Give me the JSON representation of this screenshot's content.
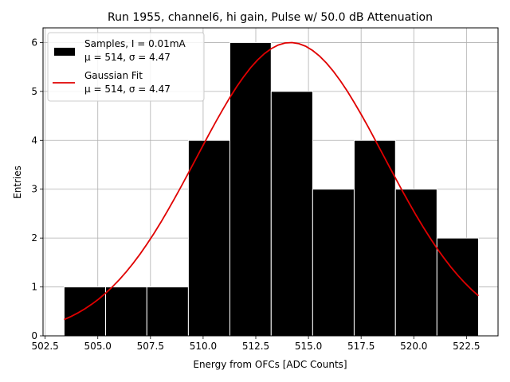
{
  "chart_data": {
    "type": "bar",
    "title": "Run 1955, channel6, hi gain, Pulse w/ 50.0 dB Attenuation",
    "xlabel": "Energy from OFCs [ADC Counts]",
    "ylabel": "Entries",
    "xlim": [
      502.4,
      524.0
    ],
    "ylim": [
      0,
      6.3
    ],
    "xticks": [
      502.5,
      505.0,
      507.5,
      510.0,
      512.5,
      515.0,
      517.5,
      520.0,
      522.5
    ],
    "xtick_labels": [
      "502.5",
      "505.0",
      "507.5",
      "510.0",
      "512.5",
      "515.0",
      "517.5",
      "520.0",
      "522.5"
    ],
    "yticks": [
      0,
      1,
      2,
      3,
      4,
      5,
      6
    ],
    "ytick_labels": [
      "0",
      "1",
      "2",
      "3",
      "4",
      "5",
      "6"
    ],
    "grid": true,
    "legend_position": "top-left",
    "histogram": {
      "name": "Samples, I = 0.01mA",
      "name_line2": "μ = 514, σ = 4.47",
      "color": "#000000",
      "edgecolor": "#ffffff",
      "bin_edges": [
        503.4,
        505.37,
        507.33,
        509.3,
        511.27,
        513.23,
        515.2,
        517.17,
        519.13,
        521.1,
        523.07
      ],
      "counts": [
        1,
        1,
        1,
        4,
        6,
        5,
        3,
        4,
        3,
        2
      ]
    },
    "series": [
      {
        "name": "Gaussian Fit",
        "name_line2": "μ = 514, σ = 4.47",
        "type": "line",
        "color": "#e00000",
        "x_range": [
          503.4,
          523.07
        ],
        "mu": 514.15,
        "sigma": 4.47,
        "amplitude": 6.0
      }
    ]
  }
}
